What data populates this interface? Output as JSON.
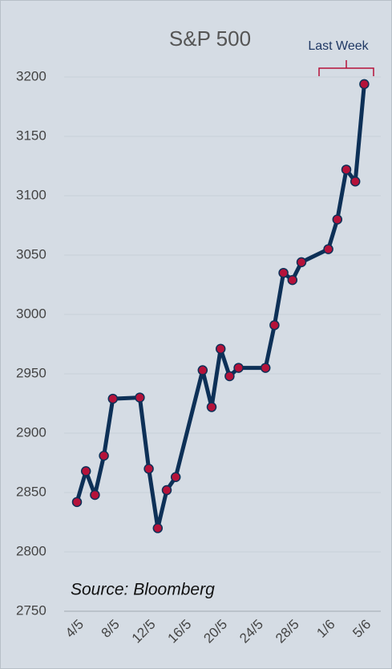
{
  "chart_data": {
    "type": "line",
    "title": "S&P 500",
    "annotation": "Last Week",
    "source": "Source: Bloomberg",
    "x": [
      "4/5",
      "5/5",
      "6/5",
      "7/5",
      "8/5",
      "11/5",
      "12/5",
      "13/5",
      "14/5",
      "15/5",
      "18/5",
      "19/5",
      "20/5",
      "21/5",
      "22/5",
      "25/5",
      "26/5",
      "27/5",
      "28/5",
      "29/5",
      "1/6",
      "2/6",
      "3/6",
      "4/6",
      "5/6"
    ],
    "series": [
      {
        "name": "S&P 500",
        "color": "#0d3057",
        "marker_color": "#b5123a",
        "values": [
          2842,
          2868,
          2848,
          2881,
          2929,
          2930,
          2870,
          2820,
          2852,
          2863,
          2953,
          2922,
          2971,
          2948,
          2955,
          2955,
          2991,
          3035,
          3029,
          3044,
          3055,
          3080,
          3122,
          3112,
          3194
        ]
      }
    ],
    "xticks": [
      "4/5",
      "8/5",
      "12/5",
      "16/5",
      "20/5",
      "24/5",
      "28/5",
      "1/6",
      "5/6"
    ],
    "ylim": [
      2750,
      3250
    ],
    "yticks": [
      2750,
      2800,
      2850,
      2900,
      2950,
      3000,
      3050,
      3100,
      3150,
      3200
    ],
    "grid": true
  }
}
